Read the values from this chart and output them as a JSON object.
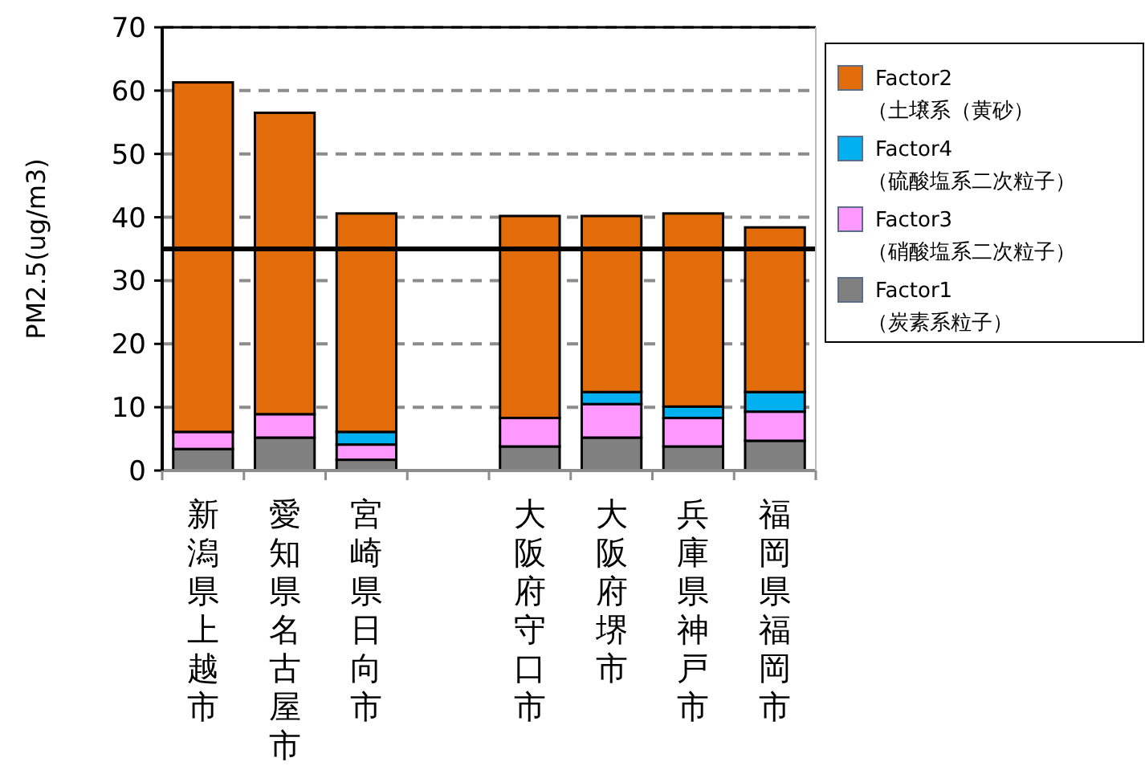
{
  "chart_data": {
    "type": "bar",
    "stacked": true,
    "ylabel": "PM2.5(ug/m3)",
    "categories": [
      "新潟県上越市",
      "愛知県名古屋市",
      "宮崎県日向市",
      null,
      "大阪府守口市",
      "大阪府堺市",
      "兵庫県神戸市",
      "福岡県福岡市"
    ],
    "series": [
      {
        "name": "Factor1\n（炭素系粒子）",
        "color": "#808080",
        "values": [
          3.4,
          5.2,
          1.7,
          null,
          3.8,
          5.2,
          3.8,
          4.7
        ]
      },
      {
        "name": "Factor3\n（硝酸塩系二次粒子）",
        "color": "#ff99ff",
        "values": [
          2.7,
          3.7,
          2.4,
          null,
          4.5,
          5.3,
          4.5,
          4.6
        ]
      },
      {
        "name": "Factor4\n（硫酸塩系二次粒子）",
        "color": "#00b0f0",
        "values": [
          null,
          null,
          2.0,
          null,
          0,
          1.9,
          1.8,
          3.1
        ]
      },
      {
        "name": "Factor2\n（土壌系（黄砂）",
        "color": "#e36c0a",
        "values": [
          55.2,
          47.6,
          34.5,
          null,
          31.9,
          27.8,
          30.5,
          26.0
        ]
      }
    ],
    "ylim": [
      0,
      70
    ],
    "yticks": [
      0,
      10,
      20,
      30,
      40,
      50,
      60,
      70
    ],
    "grid": "y",
    "legend": "right",
    "ref_lines": [
      {
        "axis": "y",
        "value": 35,
        "color": "#000000"
      }
    ]
  }
}
